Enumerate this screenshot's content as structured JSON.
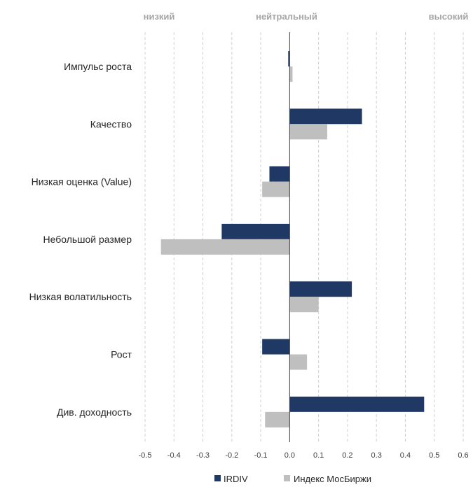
{
  "chart_data": {
    "type": "bar",
    "orientation": "horizontal",
    "top_labels": [
      "низкий",
      "нейтральный",
      "высокий"
    ],
    "categories": [
      "Импульс роста",
      "Качество",
      "Низкая оценка (Value)",
      "Небольшой размер",
      "Низкая волатильность",
      "Рост",
      "Див. доходность"
    ],
    "series": [
      {
        "name": "IRDIV",
        "color": "#1f3864",
        "values": [
          -0.005,
          0.25,
          -0.07,
          -0.235,
          0.215,
          -0.095,
          0.465
        ]
      },
      {
        "name": "Индекс МосБиржи",
        "color": "#bfbfbf",
        "values": [
          0.01,
          0.13,
          -0.095,
          -0.445,
          0.1,
          0.06,
          -0.085
        ]
      }
    ],
    "xlim": [
      -0.5,
      0.6
    ],
    "xticks": [
      -0.5,
      -0.4,
      -0.3,
      -0.2,
      -0.1,
      0.0,
      0.1,
      0.2,
      0.3,
      0.4,
      0.5,
      0.6
    ],
    "xtick_labels": [
      "-0.5",
      "-0.4",
      "-0.3",
      "-0.2",
      "-0.1",
      "0.0",
      "0.1",
      "0.2",
      "0.3",
      "0.4",
      "0.5",
      "0.6"
    ],
    "grid": "vertical dashed",
    "legend_position": "bottom"
  }
}
